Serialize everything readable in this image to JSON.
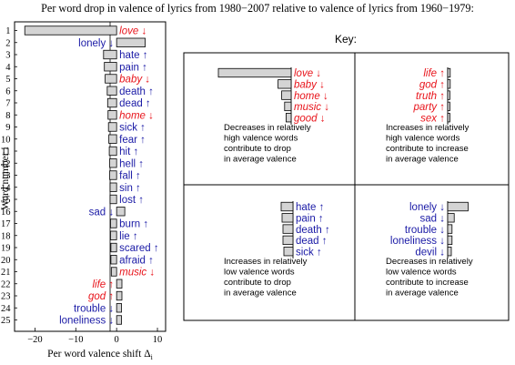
{
  "chart_data": {
    "type": "bar",
    "title": "Per word drop in valence of lyrics from 1980−2007 relative to valence of lyrics from 1960−1979:",
    "xlabel": "Per word valence shift Δ",
    "xlabel_sub": "i",
    "ylabel": "Word number i",
    "xlim": [
      -25,
      12
    ],
    "xticks": [
      "−20",
      "−10",
      "0",
      "10"
    ],
    "xtick_values": [
      -20,
      -10,
      0,
      10
    ],
    "colors": {
      "positive_word": "#e8141b",
      "negative_word": "#1a1aa6",
      "bar_fill": "#d4d4d4"
    },
    "bars": [
      {
        "rank": "1",
        "word": "love ↓",
        "value": -22.5,
        "valence": "positive"
      },
      {
        "rank": "2",
        "word": "lonely ↓",
        "value": 7.0,
        "valence": "negative"
      },
      {
        "rank": "3",
        "word": "hate ↑",
        "value": -3.2,
        "valence": "negative"
      },
      {
        "rank": "4",
        "word": "pain ↑",
        "value": -3.0,
        "valence": "negative"
      },
      {
        "rank": "5",
        "word": "baby ↓",
        "value": -2.8,
        "valence": "positive"
      },
      {
        "rank": "6",
        "word": "death ↑",
        "value": -2.3,
        "valence": "negative"
      },
      {
        "rank": "7",
        "word": "dead ↑",
        "value": -2.2,
        "valence": "negative"
      },
      {
        "rank": "8",
        "word": "home ↓",
        "value": -2.1,
        "valence": "positive"
      },
      {
        "rank": "9",
        "word": "sick ↑",
        "value": -2.0,
        "valence": "negative"
      },
      {
        "rank": "10",
        "word": "fear ↑",
        "value": -1.9,
        "valence": "negative"
      },
      {
        "rank": "11",
        "word": "hit ↑",
        "value": -1.8,
        "valence": "negative"
      },
      {
        "rank": "12",
        "word": "hell ↑",
        "value": -1.7,
        "valence": "negative"
      },
      {
        "rank": "13",
        "word": "fall ↑",
        "value": -1.7,
        "valence": "negative"
      },
      {
        "rank": "14",
        "word": "sin ↑",
        "value": -1.6,
        "valence": "negative"
      },
      {
        "rank": "15",
        "word": "lost ↑",
        "value": -1.6,
        "valence": "negative"
      },
      {
        "rank": "16",
        "word": "sad ↓",
        "value": 2.0,
        "valence": "negative"
      },
      {
        "rank": "17",
        "word": "burn ↑",
        "value": -1.5,
        "valence": "negative"
      },
      {
        "rank": "18",
        "word": "lie ↑",
        "value": -1.5,
        "valence": "negative"
      },
      {
        "rank": "19",
        "word": "scared ↑",
        "value": -1.4,
        "valence": "negative"
      },
      {
        "rank": "20",
        "word": "afraid ↑",
        "value": -1.4,
        "valence": "negative"
      },
      {
        "rank": "21",
        "word": "music ↓",
        "value": -1.3,
        "valence": "positive"
      },
      {
        "rank": "22",
        "word": "life ↑",
        "value": 1.3,
        "valence": "positive"
      },
      {
        "rank": "23",
        "word": "god ↑",
        "value": 1.3,
        "valence": "positive"
      },
      {
        "rank": "24",
        "word": "trouble ↓",
        "value": 1.2,
        "valence": "negative"
      },
      {
        "rank": "25",
        "word": "loneliness ↓",
        "value": 1.2,
        "valence": "negative"
      }
    ]
  },
  "key": {
    "title": "Key:",
    "panels": [
      {
        "id": "top-left",
        "side": "left",
        "words": [
          {
            "word": "love ↓",
            "value": -10,
            "valence": "positive"
          },
          {
            "word": "baby ↓",
            "value": -1.8,
            "valence": "positive"
          },
          {
            "word": "home ↓",
            "value": -1.3,
            "valence": "positive"
          },
          {
            "word": "music ↓",
            "value": -0.9,
            "valence": "positive"
          },
          {
            "word": "good ↓",
            "value": -0.7,
            "valence": "positive"
          }
        ],
        "caption": [
          "Decreases in relatively",
          "high valence words",
          "contribute to drop",
          "in average valence"
        ]
      },
      {
        "id": "top-right",
        "side": "right",
        "words": [
          {
            "word": "life ↑",
            "value": 0.7,
            "valence": "positive"
          },
          {
            "word": "god ↑",
            "value": 0.7,
            "valence": "positive"
          },
          {
            "word": "truth ↑",
            "value": 0.6,
            "valence": "positive"
          },
          {
            "word": "party ↑",
            "value": 0.6,
            "valence": "positive"
          },
          {
            "word": "sex ↑",
            "value": 0.6,
            "valence": "positive"
          }
        ],
        "caption": [
          "Increases in relatively",
          "high valence words",
          "contribute to increase",
          "in average valence"
        ]
      },
      {
        "id": "bottom-left",
        "side": "left",
        "words": [
          {
            "word": "hate ↑",
            "value": -1.3,
            "valence": "negative"
          },
          {
            "word": "pain ↑",
            "value": -1.2,
            "valence": "negative"
          },
          {
            "word": "death ↑",
            "value": -1.1,
            "valence": "negative"
          },
          {
            "word": "dead ↑",
            "value": -1.1,
            "valence": "negative"
          },
          {
            "word": "sick ↑",
            "value": -1.0,
            "valence": "negative"
          }
        ],
        "caption": [
          "Increases in relatively",
          "low valence words",
          "contribute to drop",
          "in average valence"
        ]
      },
      {
        "id": "bottom-right",
        "side": "right",
        "words": [
          {
            "word": "lonely ↓",
            "value": 2.8,
            "valence": "negative"
          },
          {
            "word": "sad ↓",
            "value": 0.9,
            "valence": "negative"
          },
          {
            "word": "trouble ↓",
            "value": 0.6,
            "valence": "negative"
          },
          {
            "word": "loneliness ↓",
            "value": 0.6,
            "valence": "negative"
          },
          {
            "word": "devil ↓",
            "value": 0.5,
            "valence": "negative"
          }
        ],
        "caption": [
          "Decreases in relatively",
          "low valence words",
          "contribute to increase",
          "in average valence"
        ]
      }
    ]
  }
}
